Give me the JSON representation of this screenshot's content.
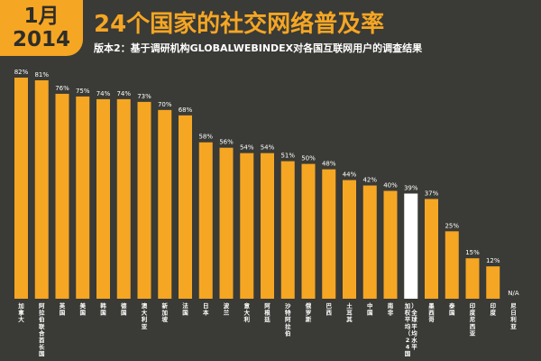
{
  "badge": {
    "month": "1月",
    "year": "2014"
  },
  "chart_data": {
    "type": "bar",
    "title": "24个国家的社交网络普及率",
    "subtitle": "版本2：基于调研机构GLOBALWEBINDEX对各国互联网用户的调查结果",
    "categories": [
      "加拿大",
      "阿拉伯联合酋长国",
      "英国",
      "美国",
      "韩国",
      "德国",
      "澳大利亚",
      "新加坡",
      "法国",
      "日本",
      "波兰",
      "意大利",
      "阿根廷",
      "沙特阿拉伯",
      "俄罗斯",
      "巴西",
      "土耳其",
      "中国",
      "南非",
      "加权平均（24国）全球平均水平",
      "墨西哥",
      "泰国",
      "印度尼西亚",
      "印度",
      "尼日利亚"
    ],
    "values": [
      82,
      81,
      76,
      75,
      74,
      74,
      73,
      70,
      68,
      58,
      56,
      54,
      54,
      51,
      50,
      48,
      44,
      42,
      40,
      39,
      37,
      25,
      15,
      12,
      null
    ],
    "value_labels": [
      "82%",
      "81%",
      "76%",
      "75%",
      "74%",
      "74%",
      "73%",
      "70%",
      "68%",
      "58%",
      "56%",
      "54%",
      "54%",
      "51%",
      "50%",
      "48%",
      "44%",
      "42%",
      "40%",
      "39%",
      "37%",
      "25%",
      "15%",
      "12%",
      "N/A"
    ],
    "highlight_index": 19,
    "colors": {
      "bar": "#f5a623",
      "highlight": "#ffffff",
      "background": "#3a3a36",
      "text": "#ffffff"
    },
    "ylim": [
      0,
      82
    ]
  }
}
